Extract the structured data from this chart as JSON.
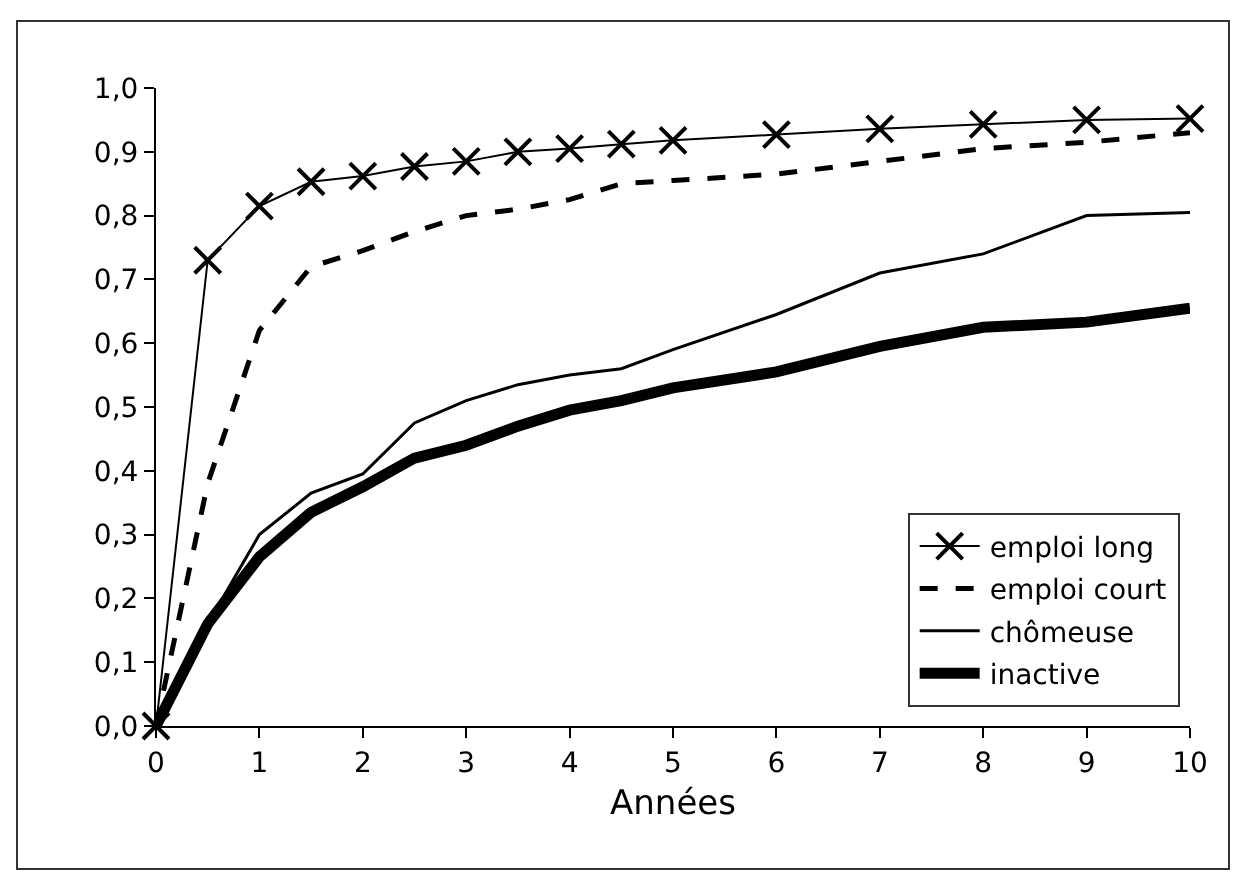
{
  "chart_data": {
    "type": "line",
    "xlabel": "Années",
    "x": [
      0,
      0.5,
      1,
      1.5,
      2,
      2.5,
      3,
      3.5,
      4,
      4.5,
      5,
      6,
      7,
      8,
      9,
      10
    ],
    "series": [
      {
        "name": "emploi long",
        "color": "#000000",
        "marker": "cross",
        "line_style": "solid",
        "values": [
          0,
          0.73,
          0.815,
          0.853,
          0.862,
          0.877,
          0.885,
          0.9,
          0.905,
          0.912,
          0.918,
          0.927,
          0.936,
          0.943,
          0.95,
          0.952
        ]
      },
      {
        "name": "emploi court",
        "color": "#000000",
        "marker": "none",
        "line_style": "dashed",
        "values": [
          0,
          0.38,
          0.62,
          0.72,
          0.745,
          0.775,
          0.8,
          0.81,
          0.825,
          0.85,
          0.855,
          0.865,
          0.885,
          0.905,
          0.915,
          0.93
        ]
      },
      {
        "name": "chômeuse",
        "color": "#000000",
        "marker": "none",
        "line_style": "solid",
        "values": [
          0,
          0.16,
          0.3,
          0.365,
          0.395,
          0.475,
          0.51,
          0.535,
          0.55,
          0.56,
          0.59,
          0.645,
          0.71,
          0.74,
          0.8,
          0.805
        ]
      },
      {
        "name": "inactive",
        "color": "#000000",
        "marker": "none",
        "line_style": "solid",
        "values": [
          0,
          0.16,
          0.265,
          0.335,
          0.375,
          0.42,
          0.44,
          0.47,
          0.495,
          0.51,
          0.53,
          0.555,
          0.595,
          0.625,
          0.633,
          0.655
        ]
      }
    ],
    "xlim": [
      0,
      10
    ],
    "xticks": [
      0,
      1,
      2,
      3,
      4,
      5,
      6,
      7,
      8,
      9,
      10
    ],
    "ylim": [
      0,
      1
    ],
    "yticks": [
      {
        "value": 0,
        "label": "0,0"
      },
      {
        "value": 0.1,
        "label": "0,1"
      },
      {
        "value": 0.2,
        "label": "0,2"
      },
      {
        "value": 0.3,
        "label": "0,3"
      },
      {
        "value": 0.4,
        "label": "0,4"
      },
      {
        "value": 0.5,
        "label": "0,5"
      },
      {
        "value": 0.6,
        "label": "0,6"
      },
      {
        "value": 0.7,
        "label": "0,7"
      },
      {
        "value": 0.8,
        "label": "0,8"
      },
      {
        "value": 0.9,
        "label": "0,9"
      },
      {
        "value": 1,
        "label": "1,0"
      }
    ],
    "grid": false,
    "legend": "bottom right"
  }
}
